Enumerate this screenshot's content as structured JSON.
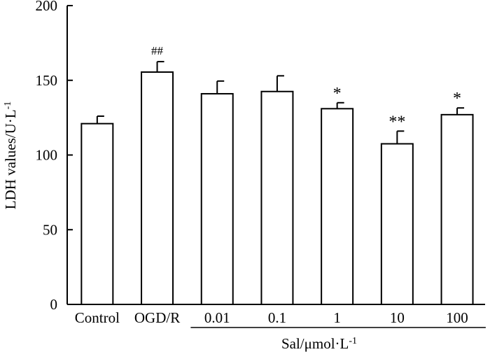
{
  "chart_data": {
    "type": "bar",
    "categories": [
      "Control",
      "OGD/R",
      "0.01",
      "0.1",
      "1",
      "10",
      "100"
    ],
    "values": [
      121,
      155.5,
      141,
      142.5,
      131,
      107.5,
      127
    ],
    "errors": [
      5,
      7,
      8.5,
      10.5,
      4,
      8.5,
      4.5
    ],
    "significance": [
      "",
      "##",
      "",
      "",
      "*",
      "**",
      "*"
    ],
    "ylim": [
      0,
      200
    ],
    "yticks": [
      0,
      50,
      100,
      150,
      200
    ],
    "ylabel": "LDH values/U·L",
    "ylabel_superscript": "-1",
    "group_label": "Sal/μmol·L",
    "group_label_superscript": "-1",
    "group_members": [
      "0.01",
      "0.1",
      "1",
      "10",
      "100"
    ],
    "bar_fill": "#ffffff",
    "bar_stroke": "#000000"
  }
}
